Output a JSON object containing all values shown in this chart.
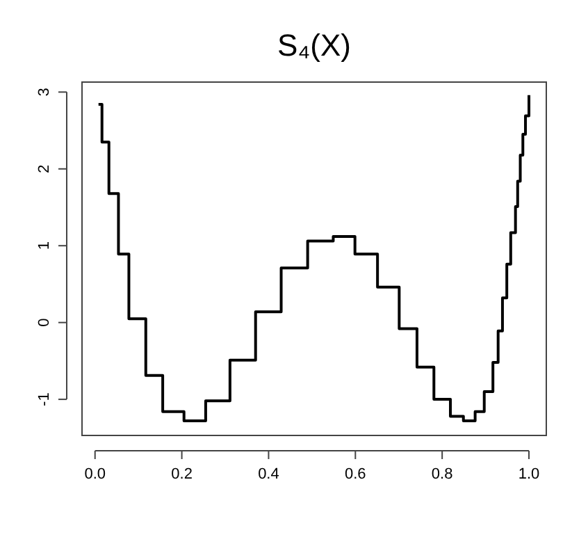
{
  "chart_data": {
    "type": "step",
    "title": "S₄(X)",
    "x": [
      0.008,
      0.016,
      0.032,
      0.054,
      0.078,
      0.117,
      0.156,
      0.205,
      0.255,
      0.311,
      0.37,
      0.429,
      0.49,
      0.549,
      0.599,
      0.651,
      0.701,
      0.742,
      0.781,
      0.819,
      0.849,
      0.876,
      0.897,
      0.917,
      0.929,
      0.939,
      0.949,
      0.958,
      0.969,
      0.974,
      0.98,
      0.986,
      0.992,
      1.0
    ],
    "values": [
      2.84,
      2.35,
      1.68,
      0.89,
      0.05,
      -0.69,
      -1.16,
      -1.28,
      -1.02,
      -0.49,
      0.14,
      0.71,
      1.06,
      1.12,
      0.89,
      0.46,
      -0.08,
      -0.58,
      -1.0,
      -1.22,
      -1.28,
      -1.16,
      -0.9,
      -0.52,
      -0.11,
      0.32,
      0.76,
      1.17,
      1.51,
      1.84,
      2.18,
      2.45,
      2.69,
      2.96
    ],
    "color": "#000000",
    "xlim": [
      -0.03,
      1.04
    ],
    "ylim": [
      -1.47,
      3.13
    ],
    "xticks": [
      {
        "value": 0,
        "label": "0.0"
      },
      {
        "value": 0.2,
        "label": "0.2"
      },
      {
        "value": 0.4,
        "label": "0.4"
      },
      {
        "value": 0.6,
        "label": "0.6"
      },
      {
        "value": 0.8,
        "label": "0.8"
      },
      {
        "value": 1,
        "label": "1.0"
      }
    ],
    "yticks": [
      -1,
      0,
      1,
      2,
      3
    ],
    "grid": false
  }
}
